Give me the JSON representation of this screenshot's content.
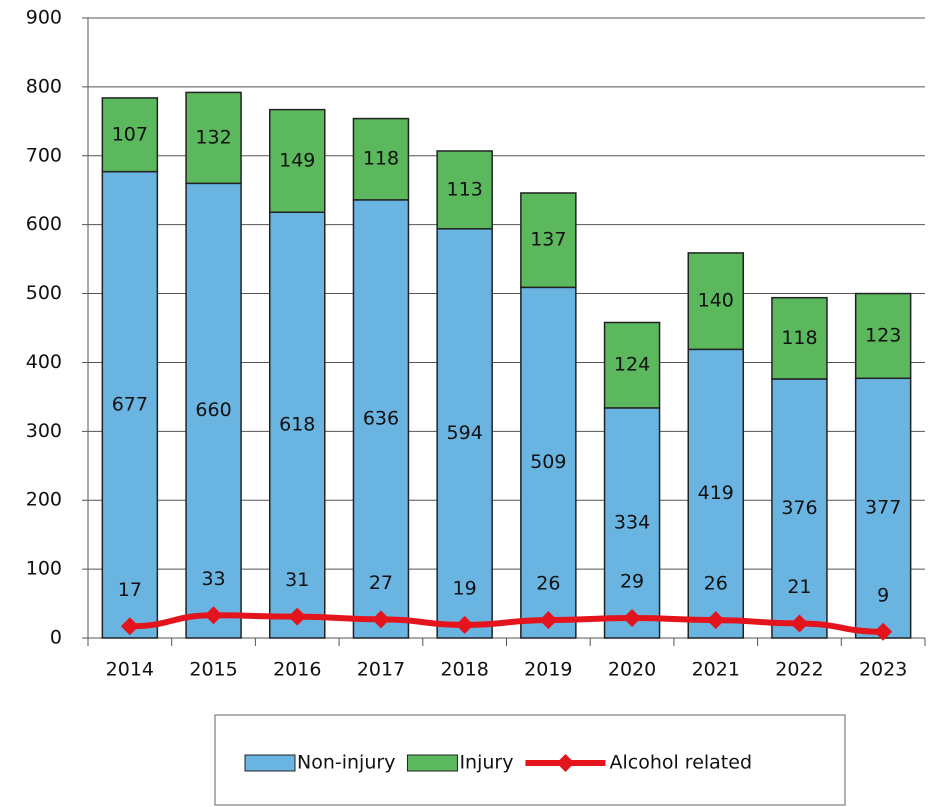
{
  "chart_data": {
    "type": "bar",
    "stacked": true,
    "categories": [
      "2014",
      "2015",
      "2016",
      "2017",
      "2018",
      "2019",
      "2020",
      "2021",
      "2022",
      "2023"
    ],
    "series": [
      {
        "name": "Non-injury",
        "color": "#6ab4e2",
        "values": [
          677,
          660,
          618,
          636,
          594,
          509,
          334,
          419,
          376,
          377
        ]
      },
      {
        "name": "Injury",
        "color": "#5cb85c",
        "values": [
          107,
          132,
          149,
          118,
          113,
          137,
          124,
          140,
          118,
          123
        ]
      },
      {
        "name": "Alcohol related",
        "type": "line",
        "color": "#e3141c",
        "values": [
          17,
          33,
          31,
          27,
          19,
          26,
          29,
          26,
          21,
          9
        ]
      }
    ],
    "ylim": [
      0,
      900
    ],
    "yticks": [
      0,
      100,
      200,
      300,
      400,
      500,
      600,
      700,
      800,
      900
    ],
    "grid": true,
    "legend": "bottom"
  }
}
